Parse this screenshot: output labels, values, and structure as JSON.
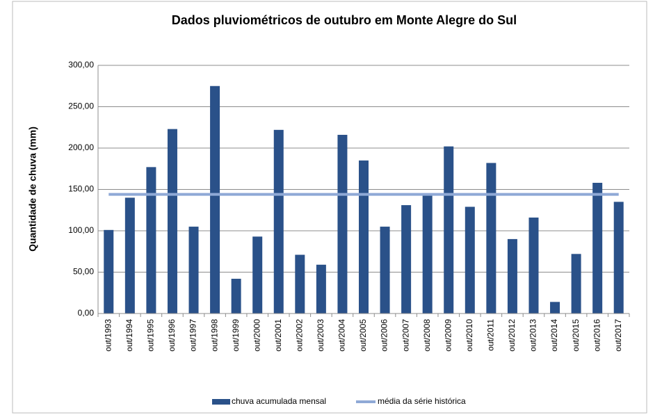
{
  "chart_data": {
    "type": "bar",
    "title": "Dados pluviométricos de outubro em Monte Alegre do Sul",
    "y_label": "Quantidade de chuva (mm)",
    "categories": [
      "out/1993",
      "out/1994",
      "out/1995",
      "out/1996",
      "out/1997",
      "out/1998",
      "out/1999",
      "out/2000",
      "out/2001",
      "out/2002",
      "out/2003",
      "out/2004",
      "out/2005",
      "out/2006",
      "out/2007",
      "out/2008",
      "out/2009",
      "out/2010",
      "out/2011",
      "out/2012",
      "out/2013",
      "out/2014",
      "out/2015",
      "out/2016",
      "out/2017"
    ],
    "series": [
      {
        "name": "chuva acumulada mensal",
        "kind": "bar",
        "color": "#2a5189",
        "values": [
          101,
          140,
          177,
          223,
          105,
          275,
          42,
          93,
          222,
          71,
          59,
          216,
          185,
          105,
          131,
          143,
          202,
          129,
          182,
          90,
          116,
          14,
          72,
          158,
          135
        ]
      },
      {
        "name": "média da série histórica",
        "kind": "line",
        "color": "#8fa9d6",
        "values": [
          144,
          144,
          144,
          144,
          144,
          144,
          144,
          144,
          144,
          144,
          144,
          144,
          144,
          144,
          144,
          144,
          144,
          144,
          144,
          144,
          144,
          144,
          144,
          144,
          144
        ]
      }
    ],
    "ylim": [
      0,
      300
    ],
    "yticks": [
      {
        "value": 0,
        "label": "0,00"
      },
      {
        "value": 50,
        "label": "50,00"
      },
      {
        "value": 100,
        "label": "100,00"
      },
      {
        "value": 150,
        "label": "150,00"
      },
      {
        "value": 200,
        "label": "200,00"
      },
      {
        "value": 250,
        "label": "250,00"
      },
      {
        "value": 300,
        "label": "300,00"
      }
    ],
    "grid": true,
    "legend": "bottom"
  }
}
